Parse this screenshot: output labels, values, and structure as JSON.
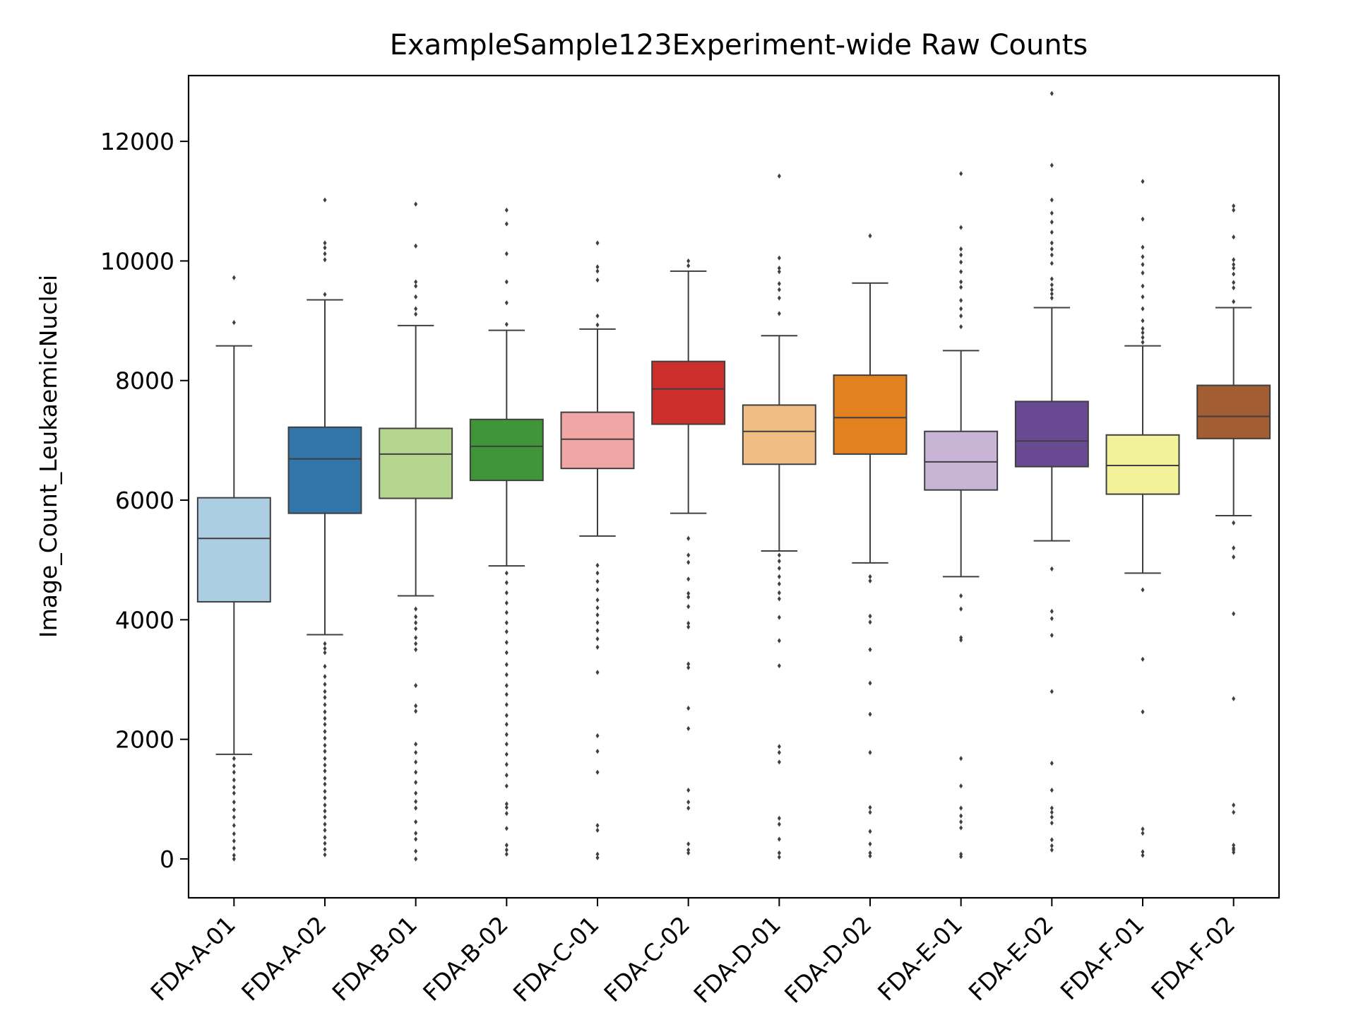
{
  "chart_data": {
    "type": "box",
    "title": "ExampleSample123Experiment-wide Raw Counts",
    "xlabel": "",
    "ylabel": "Image_Count_LeukaemicNuclei",
    "ylim": [
      -650,
      13100
    ],
    "yticks": [
      0,
      2000,
      4000,
      6000,
      8000,
      10000,
      12000
    ],
    "grid": false,
    "categories": [
      "FDA-A-01",
      "FDA-A-02",
      "FDA-B-01",
      "FDA-B-02",
      "FDA-C-01",
      "FDA-C-02",
      "FDA-D-01",
      "FDA-D-02",
      "FDA-E-01",
      "FDA-E-02",
      "FDA-F-01",
      "FDA-F-02"
    ],
    "boxes": [
      {
        "category": "FDA-A-01",
        "color": "#abcee3",
        "whislo": 1750,
        "q1": 4300,
        "med": 5360,
        "q3": 6040,
        "whishi": 8580,
        "fliers": [
          9720,
          8970,
          1680,
          1560,
          1450,
          1320,
          1200,
          1100,
          950,
          820,
          700,
          560,
          420,
          300,
          180,
          60,
          0
        ]
      },
      {
        "category": "FDA-A-02",
        "color": "#3275a8",
        "whislo": 3750,
        "q1": 5780,
        "med": 6690,
        "q3": 7220,
        "whishi": 9350,
        "fliers": [
          11020,
          10300,
          10220,
          10120,
          10020,
          9440,
          3600,
          3520,
          3450,
          3220,
          3050,
          2920,
          2800,
          2700,
          2580,
          2460,
          2350,
          2250,
          2130,
          2020,
          1900,
          1800,
          1680,
          1570,
          1470,
          1350,
          1250,
          1130,
          1020,
          900,
          800,
          700,
          580,
          480,
          360,
          260,
          160,
          70
        ]
      },
      {
        "category": "FDA-B-01",
        "color": "#b4d68f",
        "whislo": 4400,
        "q1": 6030,
        "med": 6770,
        "q3": 7200,
        "whishi": 8920,
        "fliers": [
          10950,
          10250,
          9650,
          9580,
          9400,
          9200,
          9110,
          4180,
          4050,
          3950,
          3850,
          3700,
          3600,
          3500,
          2900,
          2560,
          2470,
          1920,
          1780,
          1620,
          1450,
          1280,
          1100,
          960,
          850,
          620,
          430,
          330,
          130,
          0
        ]
      },
      {
        "category": "FDA-B-02",
        "color": "#3f9538",
        "whislo": 4900,
        "q1": 6330,
        "med": 6900,
        "q3": 7350,
        "whishi": 8840,
        "fliers": [
          10850,
          10620,
          10120,
          9650,
          9300,
          8940,
          4780,
          4620,
          4450,
          4280,
          4120,
          3950,
          3800,
          3620,
          3450,
          3250,
          3080,
          2900,
          2750,
          2580,
          2400,
          2250,
          2080,
          1920,
          1750,
          1580,
          1400,
          1220,
          920,
          860,
          760,
          510,
          230,
          150,
          80
        ]
      },
      {
        "category": "FDA-C-01",
        "color": "#f0a6a5",
        "whislo": 5400,
        "q1": 6530,
        "med": 7020,
        "q3": 7470,
        "whishi": 8860,
        "fliers": [
          10300,
          9900,
          9830,
          9680,
          9080,
          8930,
          4910,
          4780,
          4640,
          4500,
          4330,
          4200,
          4080,
          3950,
          3820,
          3680,
          3540,
          3120,
          2060,
          1800,
          1450,
          560,
          480,
          80,
          20
        ]
      },
      {
        "category": "FDA-C-02",
        "color": "#cd2f2c",
        "whislo": 5780,
        "q1": 7270,
        "med": 7860,
        "q3": 8320,
        "whishi": 9830,
        "fliers": [
          10000,
          9920,
          5360,
          5080,
          4960,
          4680,
          4440,
          4380,
          4220,
          3940,
          3880,
          3260,
          3200,
          2520,
          2180,
          1150,
          950,
          850,
          250,
          150,
          100
        ]
      },
      {
        "category": "FDA-D-01",
        "color": "#f0be85",
        "whislo": 5150,
        "q1": 6600,
        "med": 7150,
        "q3": 7590,
        "whishi": 8750,
        "fliers": [
          11420,
          10050,
          9880,
          9820,
          9620,
          9520,
          9380,
          9120,
          5080,
          4980,
          4860,
          4720,
          4600,
          4450,
          4350,
          4040,
          3650,
          3230,
          1880,
          1780,
          1620,
          680,
          580,
          330,
          100,
          30
        ]
      },
      {
        "category": "FDA-D-02",
        "color": "#e2811f",
        "whislo": 4950,
        "q1": 6770,
        "med": 7380,
        "q3": 8090,
        "whishi": 9630,
        "fliers": [
          10420,
          4720,
          4650,
          4060,
          3960,
          3500,
          2940,
          2420,
          1780,
          860,
          780,
          460,
          250,
          100,
          50
        ]
      },
      {
        "category": "FDA-E-01",
        "color": "#c8b5d6",
        "whislo": 4720,
        "q1": 6170,
        "med": 6640,
        "q3": 7150,
        "whishi": 8500,
        "fliers": [
          11460,
          10560,
          10200,
          10100,
          9980,
          9820,
          9650,
          9560,
          9340,
          9200,
          9080,
          8900,
          4400,
          4180,
          3700,
          3660,
          1680,
          1220,
          850,
          720,
          620,
          520,
          80,
          40
        ]
      },
      {
        "category": "FDA-E-02",
        "color": "#6a4993",
        "whislo": 5320,
        "q1": 6560,
        "med": 6990,
        "q3": 7650,
        "whishi": 9220,
        "fliers": [
          12800,
          11600,
          11020,
          10800,
          10650,
          10480,
          10300,
          10200,
          10100,
          9960,
          9700,
          9600,
          9520,
          9450,
          9380,
          4850,
          4140,
          4020,
          3740,
          2800,
          1600,
          1150,
          850,
          780,
          700,
          600,
          320,
          220,
          150
        ]
      },
      {
        "category": "FDA-F-01",
        "color": "#f1f29a",
        "whislo": 4780,
        "q1": 6100,
        "med": 6580,
        "q3": 7090,
        "whishi": 8580,
        "fliers": [
          11330,
          10700,
          10230,
          10070,
          9940,
          9800,
          9580,
          9400,
          9200,
          9000,
          8870,
          8800,
          8720,
          8640,
          4500,
          3340,
          2460,
          500,
          430,
          120,
          60
        ]
      },
      {
        "category": "FDA-F-02",
        "color": "#a25d33",
        "whislo": 5740,
        "q1": 7030,
        "med": 7400,
        "q3": 7920,
        "whishi": 9220,
        "fliers": [
          10920,
          10850,
          10400,
          10020,
          9940,
          9880,
          9780,
          9640,
          9550,
          9320,
          5620,
          5200,
          5050,
          4100,
          2680,
          900,
          780,
          230,
          180,
          150,
          110
        ]
      }
    ]
  }
}
